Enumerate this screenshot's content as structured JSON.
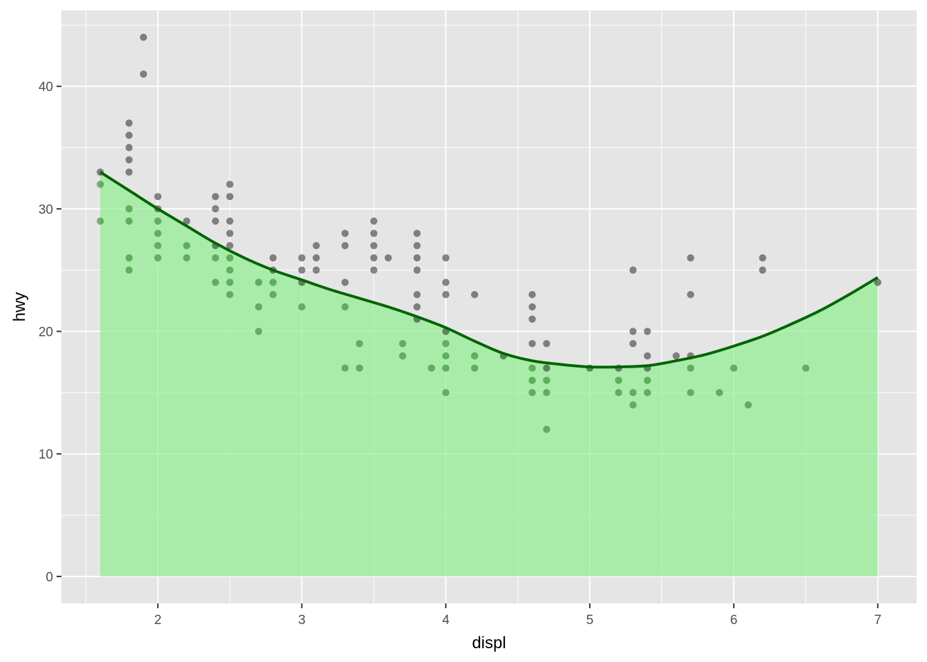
{
  "chart_data": {
    "type": "scatter",
    "title": "",
    "xlabel": "displ",
    "ylabel": "hwy",
    "xlim": [
      1.33,
      7.27
    ],
    "ylim": [
      -2.2,
      46.2
    ],
    "x_ticks": [
      2,
      3,
      4,
      5,
      6,
      7
    ],
    "y_ticks": [
      0,
      10,
      20,
      30,
      40
    ],
    "x_tick_labels": [
      "2",
      "3",
      "4",
      "5",
      "6",
      "7"
    ],
    "y_tick_labels": [
      "0",
      "10",
      "20",
      "30",
      "40"
    ],
    "grid": true,
    "legend": "none",
    "colors": {
      "panel": "#e5e5e5",
      "grid": "#ffffff",
      "area_fill": "#90ee90",
      "smooth_line": "#006400",
      "points": "#000000",
      "points_below_curve": "#006400"
    },
    "series": [
      {
        "kind": "scatter",
        "points": [
          [
            1.6,
            33
          ],
          [
            1.6,
            32
          ],
          [
            1.6,
            29
          ],
          [
            1.8,
            37
          ],
          [
            1.8,
            36
          ],
          [
            1.8,
            35
          ],
          [
            1.8,
            34
          ],
          [
            1.8,
            33
          ],
          [
            1.8,
            30
          ],
          [
            1.8,
            29
          ],
          [
            1.8,
            26
          ],
          [
            1.8,
            25
          ],
          [
            1.9,
            44
          ],
          [
            1.9,
            41
          ],
          [
            2.0,
            31
          ],
          [
            2.0,
            30
          ],
          [
            2.0,
            29
          ],
          [
            2.0,
            28
          ],
          [
            2.0,
            27
          ],
          [
            2.0,
            26
          ],
          [
            2.2,
            29
          ],
          [
            2.2,
            27
          ],
          [
            2.2,
            26
          ],
          [
            2.4,
            31
          ],
          [
            2.4,
            30
          ],
          [
            2.4,
            29
          ],
          [
            2.4,
            27
          ],
          [
            2.4,
            26
          ],
          [
            2.4,
            24
          ],
          [
            2.5,
            32
          ],
          [
            2.5,
            31
          ],
          [
            2.5,
            29
          ],
          [
            2.5,
            28
          ],
          [
            2.5,
            27
          ],
          [
            2.5,
            26
          ],
          [
            2.5,
            25
          ],
          [
            2.5,
            24
          ],
          [
            2.5,
            23
          ],
          [
            2.7,
            24
          ],
          [
            2.7,
            22
          ],
          [
            2.7,
            20
          ],
          [
            2.8,
            26
          ],
          [
            2.8,
            25
          ],
          [
            2.8,
            24
          ],
          [
            2.8,
            23
          ],
          [
            3.0,
            26
          ],
          [
            3.0,
            25
          ],
          [
            3.0,
            24
          ],
          [
            3.0,
            22
          ],
          [
            3.1,
            27
          ],
          [
            3.1,
            26
          ],
          [
            3.1,
            25
          ],
          [
            3.3,
            28
          ],
          [
            3.3,
            27
          ],
          [
            3.3,
            24
          ],
          [
            3.3,
            22
          ],
          [
            3.3,
            17
          ],
          [
            3.4,
            19
          ],
          [
            3.4,
            17
          ],
          [
            3.5,
            29
          ],
          [
            3.5,
            28
          ],
          [
            3.5,
            27
          ],
          [
            3.5,
            26
          ],
          [
            3.5,
            25
          ],
          [
            3.6,
            26
          ],
          [
            3.7,
            19
          ],
          [
            3.7,
            18
          ],
          [
            3.8,
            28
          ],
          [
            3.8,
            27
          ],
          [
            3.8,
            26
          ],
          [
            3.8,
            25
          ],
          [
            3.8,
            23
          ],
          [
            3.8,
            22
          ],
          [
            3.8,
            21
          ],
          [
            3.9,
            17
          ],
          [
            4.0,
            26
          ],
          [
            4.0,
            24
          ],
          [
            4.0,
            23
          ],
          [
            4.0,
            20
          ],
          [
            4.0,
            19
          ],
          [
            4.0,
            18
          ],
          [
            4.0,
            17
          ],
          [
            4.0,
            15
          ],
          [
            4.2,
            23
          ],
          [
            4.2,
            18
          ],
          [
            4.2,
            17
          ],
          [
            4.4,
            18
          ],
          [
            4.6,
            23
          ],
          [
            4.6,
            22
          ],
          [
            4.6,
            21
          ],
          [
            4.6,
            19
          ],
          [
            4.6,
            17
          ],
          [
            4.6,
            16
          ],
          [
            4.6,
            15
          ],
          [
            4.7,
            19
          ],
          [
            4.7,
            17
          ],
          [
            4.7,
            16
          ],
          [
            4.7,
            15
          ],
          [
            4.7,
            12
          ],
          [
            5.0,
            17
          ],
          [
            5.2,
            17
          ],
          [
            5.2,
            16
          ],
          [
            5.2,
            15
          ],
          [
            5.3,
            25
          ],
          [
            5.3,
            20
          ],
          [
            5.3,
            19
          ],
          [
            5.3,
            15
          ],
          [
            5.3,
            14
          ],
          [
            5.4,
            20
          ],
          [
            5.4,
            18
          ],
          [
            5.4,
            17
          ],
          [
            5.4,
            16
          ],
          [
            5.4,
            15
          ],
          [
            5.6,
            18
          ],
          [
            5.7,
            26
          ],
          [
            5.7,
            23
          ],
          [
            5.7,
            18
          ],
          [
            5.7,
            17
          ],
          [
            5.7,
            15
          ],
          [
            5.9,
            15
          ],
          [
            6.0,
            17
          ],
          [
            6.1,
            14
          ],
          [
            6.2,
            26
          ],
          [
            6.2,
            25
          ],
          [
            6.5,
            17
          ],
          [
            7.0,
            24
          ]
        ]
      },
      {
        "kind": "smooth_area_line",
        "x": [
          1.6,
          1.8,
          2.0,
          2.2,
          2.4,
          2.6,
          2.8,
          3.0,
          3.2,
          3.4,
          3.6,
          3.8,
          4.0,
          4.2,
          4.4,
          4.6,
          4.8,
          5.0,
          5.2,
          5.4,
          5.6,
          5.8,
          6.0,
          6.2,
          6.4,
          6.6,
          6.8,
          7.0
        ],
        "y": [
          33.0,
          31.5,
          30.0,
          28.6,
          27.2,
          26.0,
          25.0,
          24.2,
          23.4,
          22.7,
          22.0,
          21.2,
          20.3,
          19.2,
          18.2,
          17.6,
          17.3,
          17.1,
          17.1,
          17.2,
          17.6,
          18.1,
          18.8,
          19.6,
          20.6,
          21.7,
          23.0,
          24.4
        ]
      }
    ]
  }
}
